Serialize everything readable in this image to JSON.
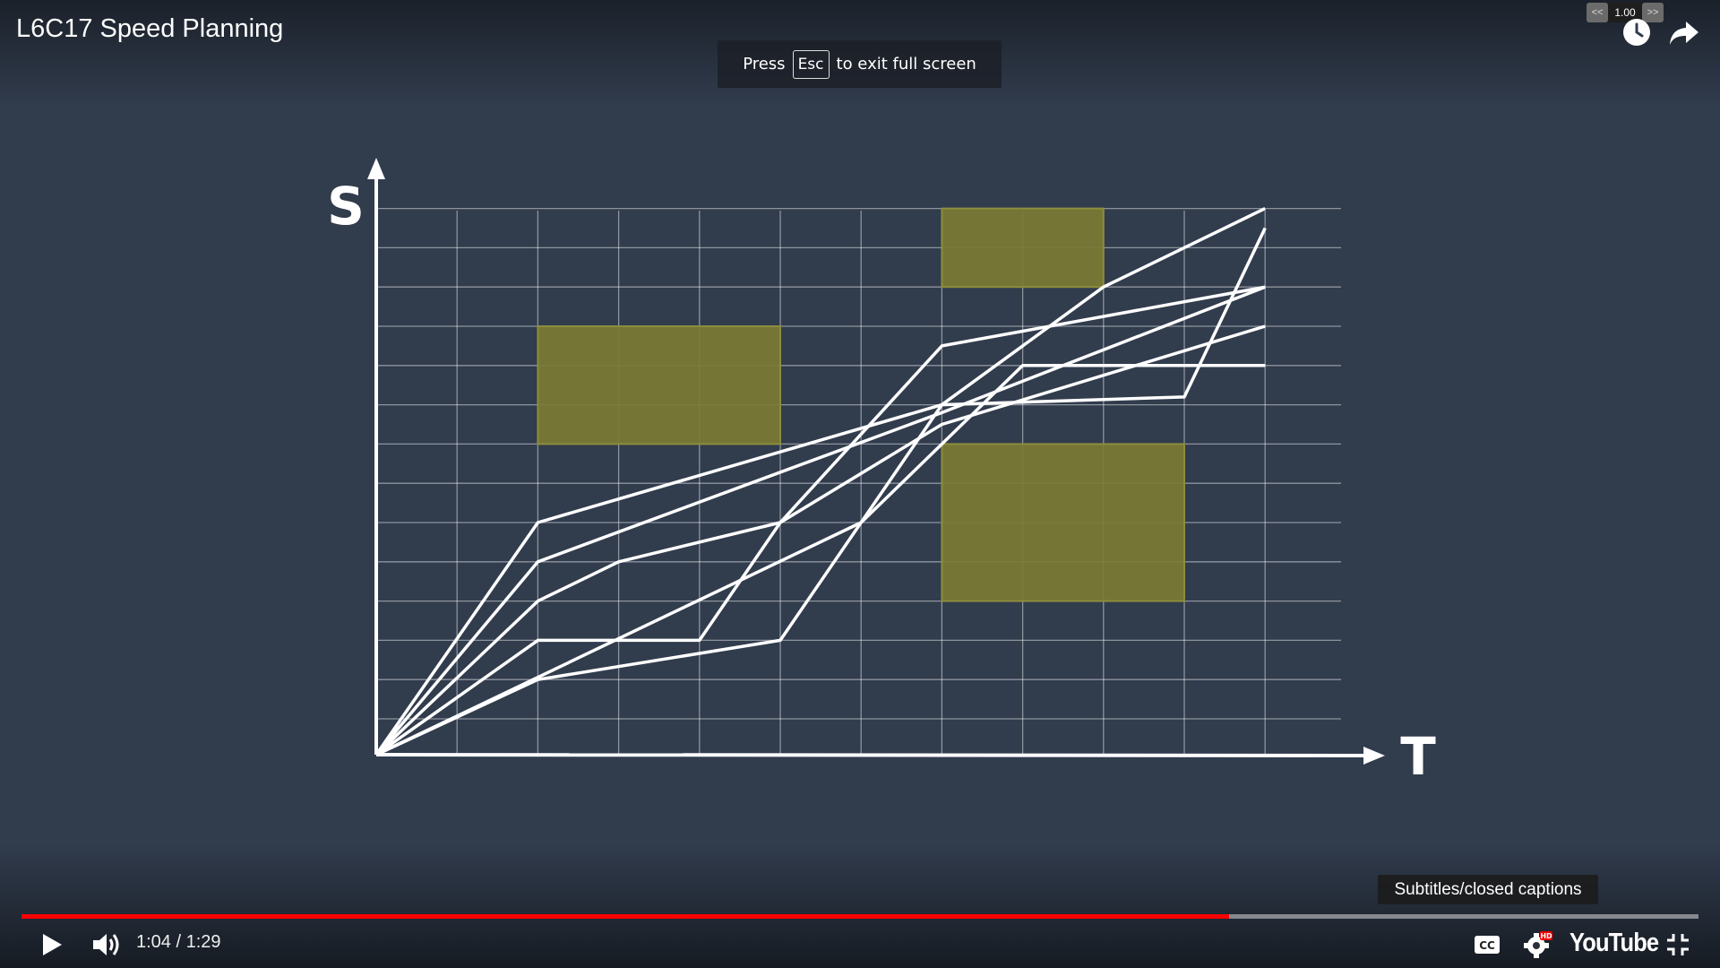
{
  "player": {
    "title": "L6C17 Speed Planning",
    "fullscreen_notice": {
      "prefix": "Press",
      "key": "Esc",
      "suffix": "to exit full screen"
    },
    "speed": {
      "decrease": "<<",
      "value": "1.00",
      "increase": ">>"
    },
    "tooltip": "Subtitles/closed captions",
    "time": "1:04 / 1:29",
    "progress": 0.72,
    "brand": "YouTube",
    "hd_badge": "HD",
    "colors": {
      "progress": "#ff0000",
      "background": "#313c4d",
      "obstacle": "#7b7b34"
    },
    "icons": [
      "play-icon",
      "volume-icon",
      "cc-icon",
      "settings-icon",
      "exit-fullscreen-icon",
      "watch-later-icon",
      "share-icon"
    ]
  },
  "diagram": {
    "y_axis_label": "S",
    "x_axis_label": "T",
    "grid": {
      "columns": 11,
      "rows": 13
    },
    "obstacles": [
      {
        "t": [
          2,
          5
        ],
        "s": [
          7,
          10
        ]
      },
      {
        "t": [
          7,
          9
        ],
        "s": [
          11,
          13
        ]
      },
      {
        "t": [
          7,
          10
        ],
        "s": [
          3,
          7
        ]
      }
    ],
    "paths": [
      [
        [
          0,
          0
        ],
        [
          2,
          5
        ],
        [
          5,
          6.8
        ],
        [
          7,
          8
        ],
        [
          9,
          11
        ],
        [
          11,
          13
        ]
      ],
      [
        [
          0,
          0
        ],
        [
          2,
          4
        ],
        [
          7,
          7.8
        ],
        [
          11,
          11
        ]
      ],
      [
        [
          0,
          0
        ],
        [
          2,
          3
        ],
        [
          3,
          4
        ],
        [
          5,
          5
        ],
        [
          7,
          7.5
        ],
        [
          11,
          10
        ]
      ],
      [
        [
          0,
          0
        ],
        [
          2,
          2
        ],
        [
          4,
          2
        ],
        [
          5,
          5
        ],
        [
          7,
          9.5
        ],
        [
          11,
          11
        ]
      ],
      [
        [
          0,
          0
        ],
        [
          2,
          1
        ],
        [
          5,
          2
        ],
        [
          7,
          8
        ],
        [
          10,
          8.2
        ],
        [
          11,
          12.5
        ]
      ],
      [
        [
          0,
          0
        ],
        [
          6,
          5
        ],
        [
          8,
          9
        ],
        [
          11,
          9
        ]
      ]
    ]
  }
}
